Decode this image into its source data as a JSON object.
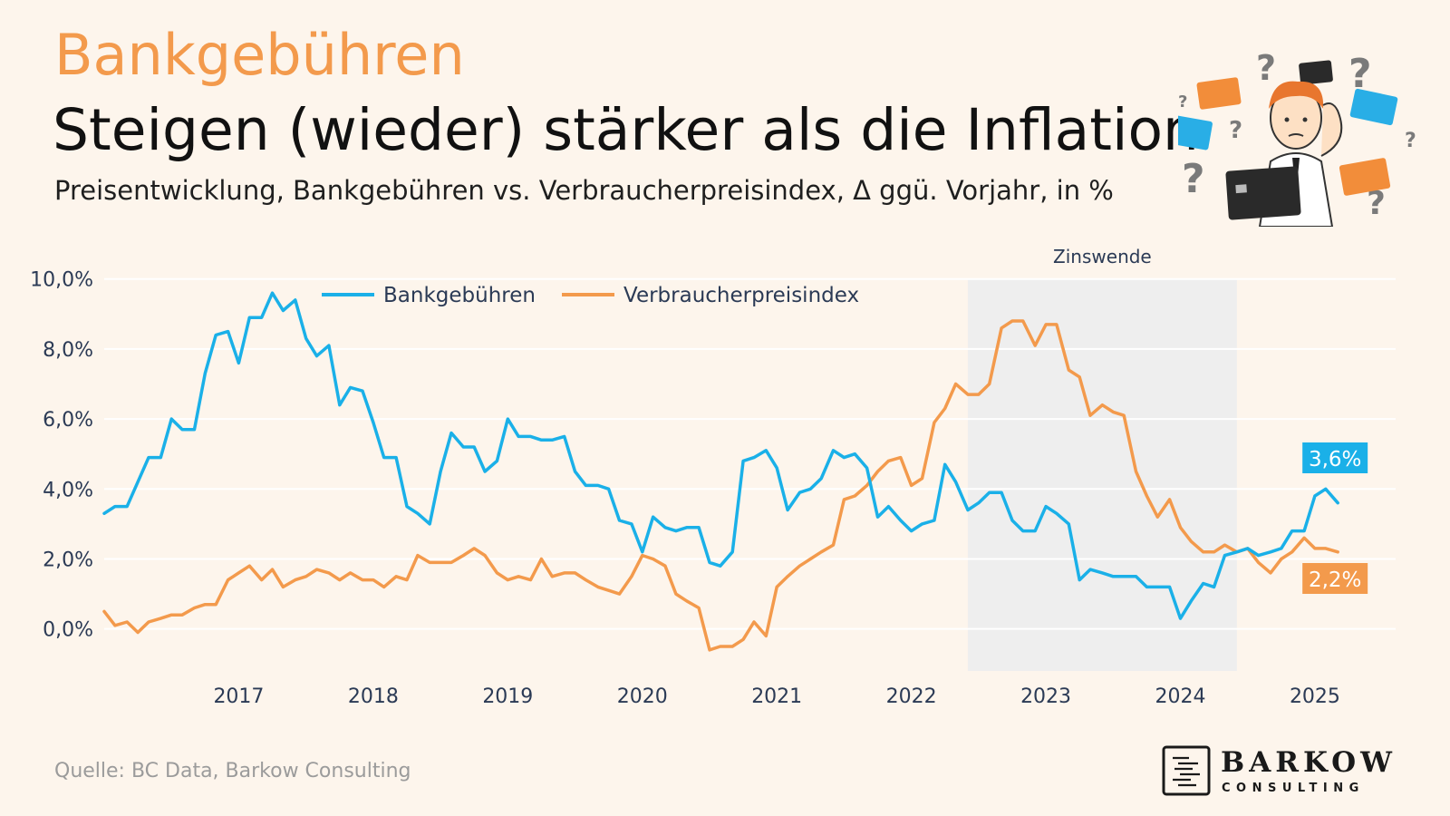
{
  "header": {
    "kicker": "Bankgebühren",
    "title": "Steigen (wieder) stärker als die Inflation",
    "subtitle": "Preisentwicklung, Bankgebühren vs. Verbraucherpreisindex, Δ ggü. Vorjahr, in %"
  },
  "footer": {
    "source": "Quelle: BC Data, Barkow Consulting",
    "logo_name": "BARKOW",
    "logo_sub": "CONSULTING"
  },
  "colors": {
    "bank": "#1ab0e8",
    "cpi": "#f39a4c",
    "shade": "#eeeeee",
    "axis_text": "#2b3a55"
  },
  "chart_data": {
    "type": "line",
    "title": "",
    "xlabel": "",
    "ylabel": "",
    "ylim": [
      -1.2,
      10.2
    ],
    "xlim": [
      2016.0,
      2025.6
    ],
    "y_ticks": [
      {
        "value": 0,
        "label": "0,0%"
      },
      {
        "value": 2,
        "label": "2,0%"
      },
      {
        "value": 4,
        "label": "4,0%"
      },
      {
        "value": 6,
        "label": "6,0%"
      },
      {
        "value": 8,
        "label": "8,0%"
      },
      {
        "value": 10,
        "label": "10,0%"
      }
    ],
    "x_ticks": [
      {
        "value": 2017,
        "label": "2017"
      },
      {
        "value": 2018,
        "label": "2018"
      },
      {
        "value": 2019,
        "label": "2019"
      },
      {
        "value": 2020,
        "label": "2020"
      },
      {
        "value": 2021,
        "label": "2021"
      },
      {
        "value": 2022,
        "label": "2022"
      },
      {
        "value": 2023,
        "label": "2023"
      },
      {
        "value": 2024,
        "label": "2024"
      },
      {
        "value": 2025,
        "label": "2025"
      }
    ],
    "grid": true,
    "legend_position": "top-left",
    "shaded_region": {
      "x_start": 2022.42,
      "x_end": 2024.42,
      "label": "Zinswende"
    },
    "series": [
      {
        "name": "Bankgebühren",
        "color": "#1ab0e8",
        "end_label": "3,6%",
        "points": [
          [
            2016.0,
            3.3
          ],
          [
            2016.08,
            3.5
          ],
          [
            2016.17,
            3.5
          ],
          [
            2016.25,
            4.2
          ],
          [
            2016.33,
            4.9
          ],
          [
            2016.42,
            4.9
          ],
          [
            2016.5,
            6.0
          ],
          [
            2016.58,
            5.7
          ],
          [
            2016.67,
            5.7
          ],
          [
            2016.75,
            7.3
          ],
          [
            2016.83,
            8.4
          ],
          [
            2016.92,
            8.5
          ],
          [
            2017.0,
            7.6
          ],
          [
            2017.08,
            8.9
          ],
          [
            2017.17,
            8.9
          ],
          [
            2017.25,
            9.6
          ],
          [
            2017.33,
            9.1
          ],
          [
            2017.42,
            9.4
          ],
          [
            2017.5,
            8.3
          ],
          [
            2017.58,
            7.8
          ],
          [
            2017.67,
            8.1
          ],
          [
            2017.75,
            6.4
          ],
          [
            2017.83,
            6.9
          ],
          [
            2017.92,
            6.8
          ],
          [
            2018.0,
            5.9
          ],
          [
            2018.08,
            4.9
          ],
          [
            2018.17,
            4.9
          ],
          [
            2018.25,
            3.5
          ],
          [
            2018.33,
            3.3
          ],
          [
            2018.42,
            3.0
          ],
          [
            2018.5,
            4.5
          ],
          [
            2018.58,
            5.6
          ],
          [
            2018.67,
            5.2
          ],
          [
            2018.75,
            5.2
          ],
          [
            2018.83,
            4.5
          ],
          [
            2018.92,
            4.8
          ],
          [
            2019.0,
            6.0
          ],
          [
            2019.08,
            5.5
          ],
          [
            2019.17,
            5.5
          ],
          [
            2019.25,
            5.4
          ],
          [
            2019.33,
            5.4
          ],
          [
            2019.42,
            5.5
          ],
          [
            2019.5,
            4.5
          ],
          [
            2019.58,
            4.1
          ],
          [
            2019.67,
            4.1
          ],
          [
            2019.75,
            4.0
          ],
          [
            2019.83,
            3.1
          ],
          [
            2019.92,
            3.0
          ],
          [
            2020.0,
            2.2
          ],
          [
            2020.08,
            3.2
          ],
          [
            2020.17,
            2.9
          ],
          [
            2020.25,
            2.8
          ],
          [
            2020.33,
            2.9
          ],
          [
            2020.42,
            2.9
          ],
          [
            2020.5,
            1.9
          ],
          [
            2020.58,
            1.8
          ],
          [
            2020.67,
            2.2
          ],
          [
            2020.75,
            4.8
          ],
          [
            2020.83,
            4.9
          ],
          [
            2020.92,
            5.1
          ],
          [
            2021.0,
            4.6
          ],
          [
            2021.08,
            3.4
          ],
          [
            2021.17,
            3.9
          ],
          [
            2021.25,
            4.0
          ],
          [
            2021.33,
            4.3
          ],
          [
            2021.42,
            5.1
          ],
          [
            2021.5,
            4.9
          ],
          [
            2021.58,
            5.0
          ],
          [
            2021.67,
            4.6
          ],
          [
            2021.75,
            3.2
          ],
          [
            2021.83,
            3.5
          ],
          [
            2021.92,
            3.1
          ],
          [
            2022.0,
            2.8
          ],
          [
            2022.08,
            3.0
          ],
          [
            2022.17,
            3.1
          ],
          [
            2022.25,
            4.7
          ],
          [
            2022.33,
            4.2
          ],
          [
            2022.42,
            3.4
          ],
          [
            2022.5,
            3.6
          ],
          [
            2022.58,
            3.9
          ],
          [
            2022.67,
            3.9
          ],
          [
            2022.75,
            3.1
          ],
          [
            2022.83,
            2.8
          ],
          [
            2022.92,
            2.8
          ],
          [
            2023.0,
            3.5
          ],
          [
            2023.08,
            3.3
          ],
          [
            2023.17,
            3.0
          ],
          [
            2023.25,
            1.4
          ],
          [
            2023.33,
            1.7
          ],
          [
            2023.42,
            1.6
          ],
          [
            2023.5,
            1.5
          ],
          [
            2023.58,
            1.5
          ],
          [
            2023.67,
            1.5
          ],
          [
            2023.75,
            1.2
          ],
          [
            2023.83,
            1.2
          ],
          [
            2023.92,
            1.2
          ],
          [
            2024.0,
            0.3
          ],
          [
            2024.08,
            0.8
          ],
          [
            2024.17,
            1.3
          ],
          [
            2024.25,
            1.2
          ],
          [
            2024.33,
            2.1
          ],
          [
            2024.42,
            2.2
          ],
          [
            2024.5,
            2.3
          ],
          [
            2024.58,
            2.1
          ],
          [
            2024.67,
            2.2
          ],
          [
            2024.75,
            2.3
          ],
          [
            2024.83,
            2.8
          ],
          [
            2024.92,
            2.8
          ],
          [
            2025.0,
            3.8
          ],
          [
            2025.08,
            4.0
          ],
          [
            2025.17,
            3.6
          ]
        ]
      },
      {
        "name": "Verbraucherpreisindex",
        "color": "#f39a4c",
        "end_label": "2,2%",
        "points": [
          [
            2016.0,
            0.5
          ],
          [
            2016.08,
            0.1
          ],
          [
            2016.17,
            0.2
          ],
          [
            2016.25,
            -0.1
          ],
          [
            2016.33,
            0.2
          ],
          [
            2016.42,
            0.3
          ],
          [
            2016.5,
            0.4
          ],
          [
            2016.58,
            0.4
          ],
          [
            2016.67,
            0.6
          ],
          [
            2016.75,
            0.7
          ],
          [
            2016.83,
            0.7
          ],
          [
            2016.92,
            1.4
          ],
          [
            2017.0,
            1.6
          ],
          [
            2017.08,
            1.8
          ],
          [
            2017.17,
            1.4
          ],
          [
            2017.25,
            1.7
          ],
          [
            2017.33,
            1.2
          ],
          [
            2017.42,
            1.4
          ],
          [
            2017.5,
            1.5
          ],
          [
            2017.58,
            1.7
          ],
          [
            2017.67,
            1.6
          ],
          [
            2017.75,
            1.4
          ],
          [
            2017.83,
            1.6
          ],
          [
            2017.92,
            1.4
          ],
          [
            2018.0,
            1.4
          ],
          [
            2018.08,
            1.2
          ],
          [
            2018.17,
            1.5
          ],
          [
            2018.25,
            1.4
          ],
          [
            2018.33,
            2.1
          ],
          [
            2018.42,
            1.9
          ],
          [
            2018.5,
            1.9
          ],
          [
            2018.58,
            1.9
          ],
          [
            2018.67,
            2.1
          ],
          [
            2018.75,
            2.3
          ],
          [
            2018.83,
            2.1
          ],
          [
            2018.92,
            1.6
          ],
          [
            2019.0,
            1.4
          ],
          [
            2019.08,
            1.5
          ],
          [
            2019.17,
            1.4
          ],
          [
            2019.25,
            2.0
          ],
          [
            2019.33,
            1.5
          ],
          [
            2019.42,
            1.6
          ],
          [
            2019.5,
            1.6
          ],
          [
            2019.58,
            1.4
          ],
          [
            2019.67,
            1.2
          ],
          [
            2019.75,
            1.1
          ],
          [
            2019.83,
            1.0
          ],
          [
            2019.92,
            1.5
          ],
          [
            2020.0,
            2.1
          ],
          [
            2020.08,
            2.0
          ],
          [
            2020.17,
            1.8
          ],
          [
            2020.25,
            1.0
          ],
          [
            2020.33,
            0.8
          ],
          [
            2020.42,
            0.6
          ],
          [
            2020.5,
            -0.6
          ],
          [
            2020.58,
            -0.5
          ],
          [
            2020.67,
            -0.5
          ],
          [
            2020.75,
            -0.3
          ],
          [
            2020.83,
            0.2
          ],
          [
            2020.92,
            -0.2
          ],
          [
            2021.0,
            1.2
          ],
          [
            2021.08,
            1.5
          ],
          [
            2021.17,
            1.8
          ],
          [
            2021.25,
            2.0
          ],
          [
            2021.33,
            2.2
          ],
          [
            2021.42,
            2.4
          ],
          [
            2021.5,
            3.7
          ],
          [
            2021.58,
            3.8
          ],
          [
            2021.67,
            4.1
          ],
          [
            2021.75,
            4.5
          ],
          [
            2021.83,
            4.8
          ],
          [
            2021.92,
            4.9
          ],
          [
            2022.0,
            4.1
          ],
          [
            2022.08,
            4.3
          ],
          [
            2022.17,
            5.9
          ],
          [
            2022.25,
            6.3
          ],
          [
            2022.33,
            7.0
          ],
          [
            2022.42,
            6.7
          ],
          [
            2022.5,
            6.7
          ],
          [
            2022.58,
            7.0
          ],
          [
            2022.67,
            8.6
          ],
          [
            2022.75,
            8.8
          ],
          [
            2022.83,
            8.8
          ],
          [
            2022.92,
            8.1
          ],
          [
            2023.0,
            8.7
          ],
          [
            2023.08,
            8.7
          ],
          [
            2023.17,
            7.4
          ],
          [
            2023.25,
            7.2
          ],
          [
            2023.33,
            6.1
          ],
          [
            2023.42,
            6.4
          ],
          [
            2023.5,
            6.2
          ],
          [
            2023.58,
            6.1
          ],
          [
            2023.67,
            4.5
          ],
          [
            2023.75,
            3.8
          ],
          [
            2023.83,
            3.2
          ],
          [
            2023.92,
            3.7
          ],
          [
            2024.0,
            2.9
          ],
          [
            2024.08,
            2.5
          ],
          [
            2024.17,
            2.2
          ],
          [
            2024.25,
            2.2
          ],
          [
            2024.33,
            2.4
          ],
          [
            2024.42,
            2.2
          ],
          [
            2024.5,
            2.3
          ],
          [
            2024.58,
            1.9
          ],
          [
            2024.67,
            1.6
          ],
          [
            2024.75,
            2.0
          ],
          [
            2024.83,
            2.2
          ],
          [
            2024.92,
            2.6
          ],
          [
            2025.0,
            2.3
          ],
          [
            2025.08,
            2.3
          ],
          [
            2025.17,
            2.2
          ]
        ]
      }
    ]
  }
}
